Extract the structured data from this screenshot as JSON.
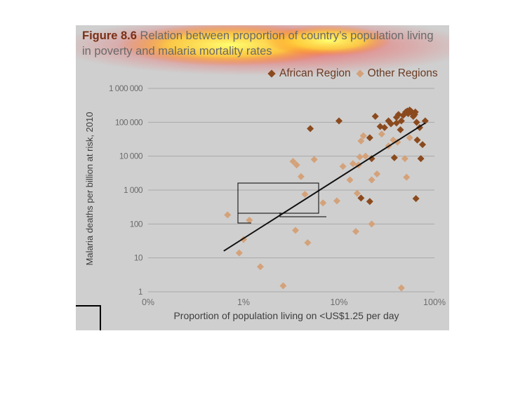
{
  "figure": {
    "label": "Figure 8.6",
    "title_rest": " Relation between proportion of country’s population living in poverty and malaria mortality rates"
  },
  "colors": {
    "african": "#8b4a1e",
    "other": "#d4a27a",
    "trend": "#111111",
    "grid": "#a9a9a9",
    "background": "#cfcfcf"
  },
  "chart_data": {
    "type": "scatter",
    "xscale": "log",
    "yscale": "log",
    "xlabel": "Proportion of population living on <US$1.25 per day",
    "ylabel": "Malaria deaths per billion at risk, 2010",
    "xticks": [
      "0%",
      "1%",
      "10%",
      "100%"
    ],
    "yticks": [
      "1",
      "10",
      "100",
      "1 000",
      "10 000",
      "100 000",
      "1 000 000"
    ],
    "ylim": [
      1,
      1000000
    ],
    "xlim": [
      0.1,
      100
    ],
    "grid": true,
    "legend": {
      "position": "top-right",
      "entries": [
        "African Region",
        "Other Regions"
      ]
    },
    "series": [
      {
        "name": "African Region",
        "points": [
          [
            5,
            65000
          ],
          [
            10,
            110000
          ],
          [
            17,
            580
          ],
          [
            21,
            460
          ],
          [
            22,
            8500
          ],
          [
            24,
            150000
          ],
          [
            27,
            75000
          ],
          [
            30,
            70000
          ],
          [
            33,
            110000
          ],
          [
            35,
            90000
          ],
          [
            38,
            9000
          ],
          [
            40,
            95000
          ],
          [
            42,
            170000
          ],
          [
            44,
            60000
          ],
          [
            45,
            110000
          ],
          [
            47,
            160000
          ],
          [
            50,
            200000
          ],
          [
            52,
            215000
          ],
          [
            53,
            180000
          ],
          [
            55,
            230000
          ],
          [
            57,
            210000
          ],
          [
            58,
            190000
          ],
          [
            60,
            150000
          ],
          [
            62,
            170000
          ],
          [
            63,
            200000
          ],
          [
            64,
            560
          ],
          [
            65,
            100000
          ],
          [
            66,
            30000
          ],
          [
            70,
            70000
          ],
          [
            72,
            8500
          ],
          [
            75,
            22000
          ],
          [
            80,
            110000
          ],
          [
            21,
            35000
          ],
          [
            40,
            140000
          ]
        ]
      },
      {
        "name": "Other Regions",
        "points": [
          [
            0.68,
            185
          ],
          [
            0.9,
            14
          ],
          [
            1.0,
            35
          ],
          [
            1.15,
            130
          ],
          [
            1.5,
            5.5
          ],
          [
            2.6,
            1.5
          ],
          [
            3.3,
            7000
          ],
          [
            3.5,
            65
          ],
          [
            3.6,
            5500
          ],
          [
            4.0,
            2500
          ],
          [
            4.4,
            750
          ],
          [
            4.7,
            28
          ],
          [
            5.5,
            8000
          ],
          [
            6.8,
            420
          ],
          [
            9.5,
            480
          ],
          [
            11,
            5000
          ],
          [
            14,
            6000
          ],
          [
            15,
            60
          ],
          [
            15.5,
            800
          ],
          [
            16,
            5500
          ],
          [
            16.5,
            9500
          ],
          [
            17,
            28000
          ],
          [
            18,
            40000
          ],
          [
            19,
            10000
          ],
          [
            22,
            2000
          ],
          [
            25,
            3000
          ],
          [
            28,
            45000
          ],
          [
            33,
            20000
          ],
          [
            37,
            30000
          ],
          [
            41,
            26000
          ],
          [
            45,
            1.3
          ],
          [
            49,
            8500
          ],
          [
            51,
            2400
          ],
          [
            55,
            35000
          ],
          [
            13,
            2000
          ],
          [
            22,
            100
          ]
        ]
      }
    ],
    "trendline": {
      "from": [
        0.62,
        16
      ],
      "to": [
        80,
        95000
      ]
    }
  }
}
